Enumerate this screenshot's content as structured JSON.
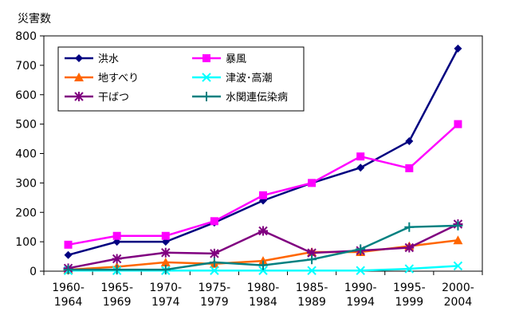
{
  "chart_data": {
    "type": "line",
    "ylabel": "災害数",
    "ylim": [
      0,
      800
    ],
    "yticks": [
      0,
      100,
      200,
      300,
      400,
      500,
      600,
      700,
      800
    ],
    "grid": false,
    "legend_position": "top-left",
    "categories": [
      [
        "1960-",
        "1964"
      ],
      [
        "1965-",
        "1969"
      ],
      [
        "1970-",
        "1974"
      ],
      [
        "1975-",
        "1979"
      ],
      [
        "1980-",
        "1984"
      ],
      [
        "1985-",
        "1989"
      ],
      [
        "1990-",
        "1994"
      ],
      [
        "1995-",
        "1999"
      ],
      [
        "2000-",
        "2004"
      ]
    ],
    "series": [
      {
        "name": "洪水",
        "color": "#000080",
        "marker": "diamond",
        "values": [
          55,
          100,
          100,
          165,
          240,
          300,
          352,
          442,
          757
        ]
      },
      {
        "name": "暴風",
        "color": "#ff00ff",
        "marker": "square",
        "values": [
          90,
          120,
          120,
          170,
          258,
          300,
          390,
          350,
          500
        ]
      },
      {
        "name": "地すべり",
        "color": "#ff6600",
        "marker": "triangle",
        "values": [
          5,
          15,
          30,
          25,
          35,
          65,
          65,
          85,
          105
        ]
      },
      {
        "name": "津波･高潮",
        "color": "#00ffff",
        "marker": "x",
        "values": [
          2,
          2,
          2,
          2,
          2,
          2,
          2,
          8,
          18
        ]
      },
      {
        "name": "干ばつ",
        "color": "#800080",
        "marker": "asterisk",
        "values": [
          10,
          42,
          63,
          60,
          137,
          62,
          70,
          80,
          160
        ]
      },
      {
        "name": "水関連伝染病",
        "color": "#008080",
        "marker": "plus",
        "values": [
          5,
          5,
          5,
          30,
          20,
          40,
          75,
          150,
          155
        ]
      }
    ]
  }
}
